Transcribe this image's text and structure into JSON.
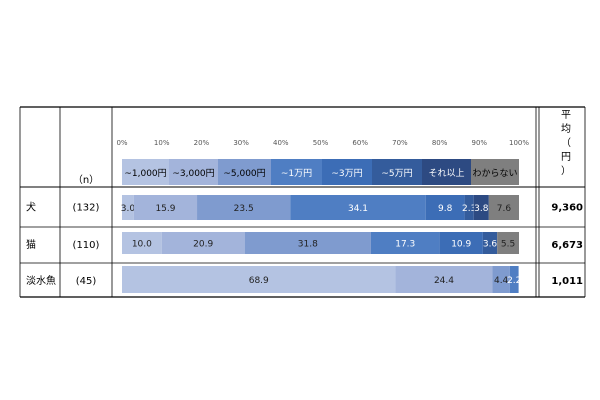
{
  "chart_data": {
    "type": "bar",
    "orientation": "horizontal",
    "stacked": "100%",
    "categories": [
      "犬",
      "猫",
      "淡水魚"
    ],
    "n_header": "（n）",
    "n_labels": [
      "(132)",
      "(110)",
      "(45)"
    ],
    "x_ticks": [
      "0%",
      "10%",
      "20%",
      "30%",
      "40%",
      "50%",
      "60%",
      "70%",
      "80%",
      "90%",
      "100%"
    ],
    "xlim": [
      0,
      100
    ],
    "series": [
      {
        "name": "~1,000円",
        "color": "#b4c3e2",
        "values": [
          3.0,
          10.0,
          68.9
        ]
      },
      {
        "name": "~3,000円",
        "color": "#a3b4db",
        "values": [
          15.9,
          20.9,
          24.4
        ]
      },
      {
        "name": "~5,000円",
        "color": "#7f9bcf",
        "values": [
          23.5,
          31.8,
          4.4
        ]
      },
      {
        "name": "~1万円",
        "color": "#4f7ec3",
        "values": [
          34.1,
          17.3,
          2.2
        ]
      },
      {
        "name": "~3万円",
        "color": "#3c6db6",
        "values": [
          9.8,
          10.9,
          0
        ]
      },
      {
        "name": "~5万円",
        "color": "#345c9c",
        "values": [
          2.3,
          3.6,
          0
        ]
      },
      {
        "name": "それ以上",
        "color": "#2d4a82",
        "values": [
          3.8,
          0,
          0
        ]
      },
      {
        "name": "わからない",
        "color": "#7f7f7f",
        "values": [
          7.6,
          5.5,
          0
        ]
      }
    ],
    "value_labels": [
      [
        "3.0",
        "15.9",
        "23.5",
        "34.1",
        "9.8",
        "2.3",
        "3.8",
        "7.6"
      ],
      [
        "10.0",
        "20.9",
        "31.8",
        "17.3",
        "10.9",
        "3.6",
        "",
        "5.5"
      ],
      [
        "68.9",
        "24.4",
        "4.4",
        "2.2",
        "",
        "",
        "",
        ""
      ]
    ],
    "average_header": "平均（円）",
    "averages": [
      "9,360",
      "6,673",
      "1,011"
    ],
    "legend_position": "top"
  }
}
